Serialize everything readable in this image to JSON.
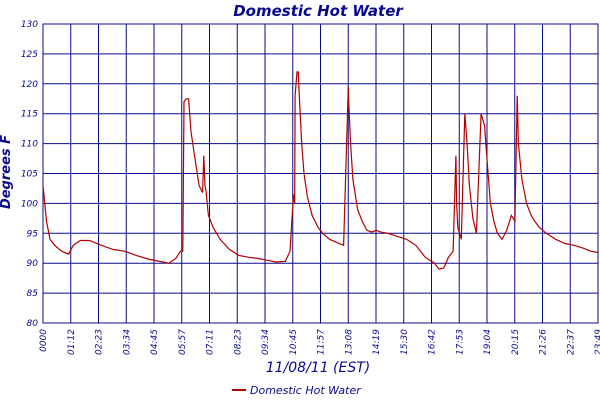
{
  "chart_data": {
    "type": "line",
    "title": "Domestic Hot Water",
    "xlabel": "11/08/11 (EST)",
    "ylabel": "Degrees F",
    "ylim": [
      80,
      130
    ],
    "yticks": [
      80,
      85,
      90,
      95,
      100,
      105,
      110,
      115,
      120,
      125,
      130
    ],
    "xlim_hours": [
      0,
      23.817
    ],
    "xtick_labels": [
      "0000",
      "01:12",
      "02:23",
      "03:34",
      "04:45",
      "05:57",
      "07:11",
      "08:23",
      "09:34",
      "10:45",
      "11:57",
      "13:08",
      "14:19",
      "15:30",
      "16:42",
      "17:53",
      "19:04",
      "20:15",
      "21:26",
      "22:37",
      "23:49"
    ],
    "grid": true,
    "legend_position": "bottom-center",
    "colors": {
      "series": "#b00000",
      "grid": "#0a0a8c",
      "text": "#0a0a8c"
    },
    "series": [
      {
        "name": "Domestic Hot Water",
        "x_hours": [
          0,
          0.05,
          0.15,
          0.3,
          0.5,
          0.8,
          1.1,
          1.3,
          1.6,
          2.0,
          2.5,
          3.0,
          3.5,
          4.0,
          4.5,
          5.0,
          5.4,
          5.7,
          5.9,
          6.0,
          6.05,
          6.15,
          6.25,
          6.35,
          6.5,
          6.7,
          6.85,
          6.9,
          6.95,
          7.0,
          7.1,
          7.3,
          7.6,
          8.0,
          8.4,
          8.8,
          9.2,
          9.6,
          10.0,
          10.4,
          10.6,
          10.75,
          10.8,
          10.82,
          10.9,
          10.95,
          11.0,
          11.1,
          11.2,
          11.35,
          11.55,
          11.8,
          12.0,
          12.3,
          12.6,
          12.9,
          13.1,
          13.12,
          13.2,
          13.3,
          13.5,
          13.7,
          13.9,
          14.1,
          14.3,
          14.5,
          14.8,
          15.2,
          15.6,
          16.0,
          16.4,
          16.8,
          17.0,
          17.2,
          17.4,
          17.6,
          17.72,
          17.75,
          17.8,
          17.95,
          18.1,
          18.2,
          18.3,
          18.45,
          18.6,
          18.8,
          18.95,
          19.0,
          19.1,
          19.2,
          19.35,
          19.5,
          19.7,
          19.9,
          20.1,
          20.25,
          20.35,
          20.4,
          20.55,
          20.7,
          20.75,
          20.85,
          20.95,
          21.1,
          21.3,
          21.6,
          22.0,
          22.4,
          22.8,
          23.2,
          23.5,
          23.8
        ],
        "y": [
          103,
          101,
          97,
          94,
          93,
          92,
          91.5,
          93,
          93.8,
          93.8,
          93,
          92.3,
          92,
          91.3,
          90.7,
          90.3,
          90,
          90.8,
          92,
          92,
          117,
          117.5,
          117.5,
          112,
          108,
          103,
          101.8,
          108,
          103,
          102,
          98,
          96,
          94,
          92.3,
          91.3,
          91,
          90.8,
          90.5,
          90.2,
          90.3,
          92,
          101.5,
          100,
          118,
          122,
          122,
          118,
          110,
          105,
          101,
          98,
          96,
          95,
          94,
          93.5,
          93,
          119.5,
          117,
          110,
          104,
          99,
          97,
          95.5,
          95.2,
          95.5,
          95.2,
          95,
          94.5,
          94,
          93,
          91,
          90,
          89,
          89.2,
          91,
          92,
          108,
          100,
          96,
          94,
          115,
          110,
          103,
          97.5,
          95,
          115,
          113,
          110,
          105,
          100,
          97,
          95,
          94,
          95.5,
          98,
          97,
          118,
          110,
          104,
          101,
          100,
          99,
          98,
          97,
          96,
          95,
          94,
          93.3,
          93,
          92.5,
          92,
          91.8
        ]
      }
    ]
  }
}
